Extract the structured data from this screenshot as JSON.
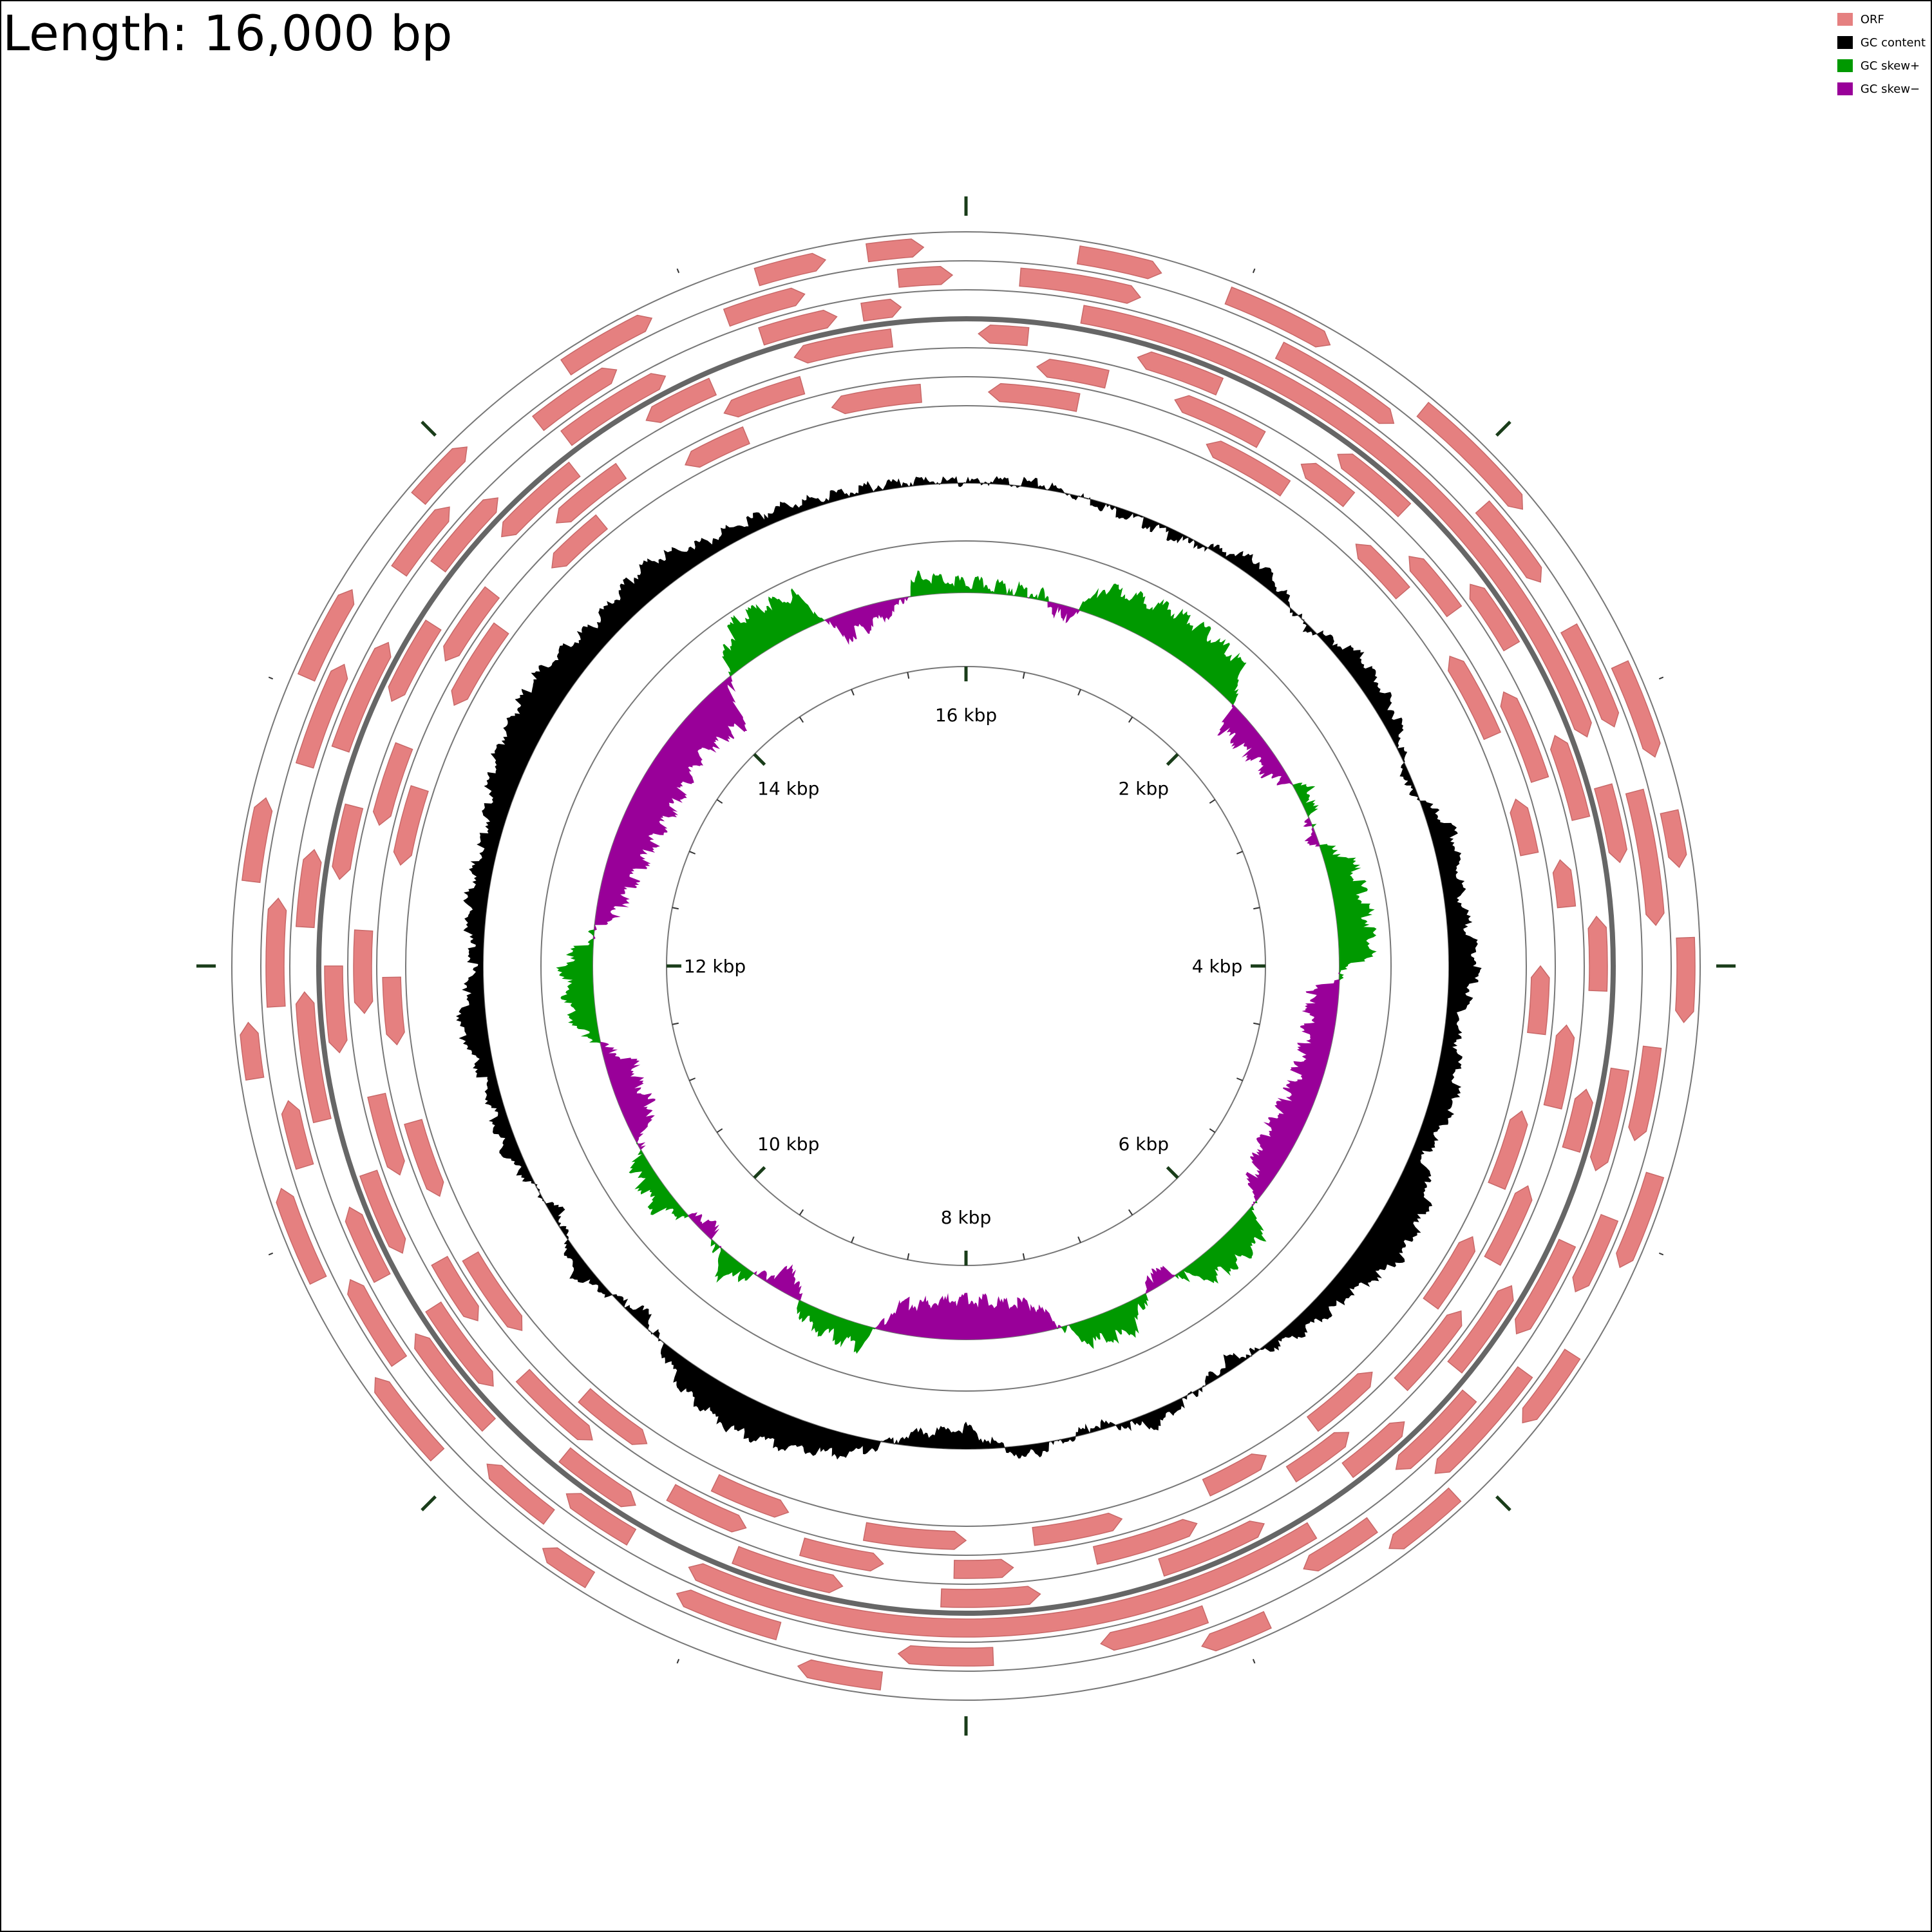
{
  "title": "Length: 16,000 bp",
  "legend": [
    {
      "label": "ORF",
      "color": "#e58080"
    },
    {
      "label": "GC content",
      "color": "#000000"
    },
    {
      "label": "GC skew+",
      "color": "#009900"
    },
    {
      "label": "GC skew−",
      "color": "#990099"
    }
  ],
  "map": {
    "sequence_length_bp": 16000,
    "scale_labels": [
      {
        "position_bp": 0,
        "text": "16 kbp"
      },
      {
        "position_bp": 2000,
        "text": "2 kbp"
      },
      {
        "position_bp": 4000,
        "text": "4 kbp"
      },
      {
        "position_bp": 6000,
        "text": "6 kbp"
      },
      {
        "position_bp": 8000,
        "text": "8 kbp"
      },
      {
        "position_bp": 10000,
        "text": "10 kbp"
      },
      {
        "position_bp": 12000,
        "text": "12 kbp"
      },
      {
        "position_bp": 14000,
        "text": "14 kbp"
      }
    ],
    "orf_tracks": [
      {
        "strand": "forward",
        "frame": 1,
        "orfs": [
          {
            "start": 400,
            "end": 700
          },
          {
            "start": 950,
            "end": 1350
          },
          {
            "start": 1750,
            "end": 2250
          },
          {
            "start": 2900,
            "end": 3250
          },
          {
            "start": 3450,
            "end": 3650
          },
          {
            "start": 3900,
            "end": 4200
          },
          {
            "start": 4750,
            "end": 5100
          },
          {
            "start": 5450,
            "end": 5750
          },
          {
            "start": 6100,
            "end": 6400
          },
          {
            "start": 6900,
            "end": 7150
          },
          {
            "start": 8300,
            "end": 8600
          },
          {
            "start": 9400,
            "end": 9600
          },
          {
            "start": 10100,
            "end": 10450
          },
          {
            "start": 10850,
            "end": 11200
          },
          {
            "start": 11600,
            "end": 11800
          },
          {
            "start": 12300,
            "end": 12600
          },
          {
            "start": 13050,
            "end": 13400
          },
          {
            "start": 13800,
            "end": 14050
          },
          {
            "start": 14500,
            "end": 14850
          },
          {
            "start": 15250,
            "end": 15500
          },
          {
            "start": 15650,
            "end": 15850
          }
        ]
      },
      {
        "strand": "forward",
        "frame": 2,
        "orfs": [
          {
            "start": 200,
            "end": 650
          },
          {
            "start": 1200,
            "end": 1700
          },
          {
            "start": 2150,
            "end": 2500
          },
          {
            "start": 2700,
            "end": 3100
          },
          {
            "start": 3350,
            "end": 3850
          },
          {
            "start": 4300,
            "end": 4650
          },
          {
            "start": 4950,
            "end": 5250
          },
          {
            "start": 5600,
            "end": 6100
          },
          {
            "start": 6400,
            "end": 6700
          },
          {
            "start": 7100,
            "end": 7500
          },
          {
            "start": 7900,
            "end": 8250
          },
          {
            "start": 8700,
            "end": 9100
          },
          {
            "start": 9650,
            "end": 9950
          },
          {
            "start": 10450,
            "end": 10800
          },
          {
            "start": 11250,
            "end": 11500
          },
          {
            "start": 11850,
            "end": 12250
          },
          {
            "start": 12750,
            "end": 13150
          },
          {
            "start": 13550,
            "end": 13850
          },
          {
            "start": 14300,
            "end": 14650
          },
          {
            "start": 15100,
            "end": 15400
          },
          {
            "start": 15750,
            "end": 15950
          }
        ]
      },
      {
        "strand": "forward",
        "frame": 3,
        "orfs": [
          {
            "start": 450,
            "end": 3100
          },
          {
            "start": 3300,
            "end": 3600
          },
          {
            "start": 4400,
            "end": 4800
          },
          {
            "start": 5100,
            "end": 5500
          },
          {
            "start": 5800,
            "end": 6200
          },
          {
            "start": 6600,
            "end": 9100
          },
          {
            "start": 9350,
            "end": 9650
          },
          {
            "start": 10050,
            "end": 10500
          },
          {
            "start": 10750,
            "end": 11050
          },
          {
            "start": 11400,
            "end": 11900
          },
          {
            "start": 12150,
            "end": 12450
          },
          {
            "start": 12850,
            "end": 13300
          },
          {
            "start": 13650,
            "end": 14000
          },
          {
            "start": 14350,
            "end": 14800
          },
          {
            "start": 15200,
            "end": 15500
          },
          {
            "start": 15600,
            "end": 15750
          }
        ]
      },
      {
        "strand": "reverse",
        "frame": 1,
        "orfs": [
          {
            "start": 50,
            "end": 250
          },
          {
            "start": 700,
            "end": 1050
          },
          {
            "start": 1600,
            "end": 1950
          },
          {
            "start": 2350,
            "end": 2650
          },
          {
            "start": 3050,
            "end": 3400
          },
          {
            "start": 3800,
            "end": 4100
          },
          {
            "start": 4500,
            "end": 4750
          },
          {
            "start": 5350,
            "end": 5750
          },
          {
            "start": 6050,
            "end": 6350
          },
          {
            "start": 6750,
            "end": 7200
          },
          {
            "start": 7700,
            "end": 8100
          },
          {
            "start": 8500,
            "end": 8950
          },
          {
            "start": 9400,
            "end": 9750
          },
          {
            "start": 10150,
            "end": 10550
          },
          {
            "start": 10800,
            "end": 11150
          },
          {
            "start": 11650,
            "end": 12000
          },
          {
            "start": 12350,
            "end": 12650
          },
          {
            "start": 13100,
            "end": 13450
          },
          {
            "start": 13900,
            "end": 14300
          },
          {
            "start": 14650,
            "end": 14950
          },
          {
            "start": 15300,
            "end": 15700
          }
        ]
      },
      {
        "strand": "reverse",
        "frame": 2,
        "orfs": [
          {
            "start": 300,
            "end": 600
          },
          {
            "start": 900,
            "end": 1300
          },
          {
            "start": 1500,
            "end": 1750
          },
          {
            "start": 2100,
            "end": 2400
          },
          {
            "start": 2800,
            "end": 3200
          },
          {
            "start": 3550,
            "end": 3750
          },
          {
            "start": 4250,
            "end": 4600
          },
          {
            "start": 4950,
            "end": 5300
          },
          {
            "start": 5550,
            "end": 5950
          },
          {
            "start": 6250,
            "end": 6550
          },
          {
            "start": 7000,
            "end": 7450
          },
          {
            "start": 7800,
            "end": 8050
          },
          {
            "start": 8350,
            "end": 8700
          },
          {
            "start": 8950,
            "end": 9300
          },
          {
            "start": 9700,
            "end": 10100
          },
          {
            "start": 10400,
            "end": 10700
          },
          {
            "start": 11100,
            "end": 11450
          },
          {
            "start": 11800,
            "end": 12150
          },
          {
            "start": 12600,
            "end": 12950
          },
          {
            "start": 13350,
            "end": 13700
          },
          {
            "start": 14100,
            "end": 14450
          },
          {
            "start": 14950,
            "end": 15300
          }
        ]
      },
      {
        "strand": "reverse",
        "frame": 3,
        "orfs": [
          {
            "start": 100,
            "end": 500
          },
          {
            "start": 1100,
            "end": 1500
          },
          {
            "start": 1900,
            "end": 2200
          },
          {
            "start": 2550,
            "end": 2950
          },
          {
            "start": 3250,
            "end": 3500
          },
          {
            "start": 4000,
            "end": 4300
          },
          {
            "start": 4650,
            "end": 5000
          },
          {
            "start": 5250,
            "end": 5600
          },
          {
            "start": 6000,
            "end": 6350
          },
          {
            "start": 6600,
            "end": 6900
          },
          {
            "start": 7300,
            "end": 7700
          },
          {
            "start": 8000,
            "end": 8450
          },
          {
            "start": 8800,
            "end": 9150
          },
          {
            "start": 9500,
            "end": 9850
          },
          {
            "start": 10250,
            "end": 10650
          },
          {
            "start": 10950,
            "end": 11300
          },
          {
            "start": 11650,
            "end": 11950
          },
          {
            "start": 12450,
            "end": 12800
          },
          {
            "start": 13200,
            "end": 13600
          },
          {
            "start": 13950,
            "end": 14250
          },
          {
            "start": 14700,
            "end": 15000
          },
          {
            "start": 15400,
            "end": 15800
          }
        ]
      }
    ],
    "gc_content_profile": [
      {
        "pos": 0,
        "dev": 0.02
      },
      {
        "pos": 400,
        "dev": 0.1
      },
      {
        "pos": 800,
        "dev": -0.1
      },
      {
        "pos": 1200,
        "dev": -0.15
      },
      {
        "pos": 1600,
        "dev": 0.35
      },
      {
        "pos": 2000,
        "dev": -0.1
      },
      {
        "pos": 2300,
        "dev": 0.4
      },
      {
        "pos": 2700,
        "dev": 0.3
      },
      {
        "pos": 3000,
        "dev": -0.2
      },
      {
        "pos": 3300,
        "dev": 0.45
      },
      {
        "pos": 3700,
        "dev": 0.35
      },
      {
        "pos": 4000,
        "dev": 0.6
      },
      {
        "pos": 4300,
        "dev": 0.25
      },
      {
        "pos": 4700,
        "dev": 0.5
      },
      {
        "pos": 5000,
        "dev": 0.25
      },
      {
        "pos": 5200,
        "dev": 0.75
      },
      {
        "pos": 5500,
        "dev": 0.85
      },
      {
        "pos": 5800,
        "dev": 0.45
      },
      {
        "pos": 6200,
        "dev": 0.25
      },
      {
        "pos": 6500,
        "dev": -0.25
      },
      {
        "pos": 7000,
        "dev": 0.3
      },
      {
        "pos": 7300,
        "dev": -0.15
      },
      {
        "pos": 7700,
        "dev": 0.25
      },
      {
        "pos": 8000,
        "dev": -0.45
      },
      {
        "pos": 8300,
        "dev": -0.25
      },
      {
        "pos": 8600,
        "dev": 0.4
      },
      {
        "pos": 8900,
        "dev": 0.65
      },
      {
        "pos": 9200,
        "dev": 0.75
      },
      {
        "pos": 9500,
        "dev": 0.55
      },
      {
        "pos": 9900,
        "dev": -0.25
      },
      {
        "pos": 10300,
        "dev": 0.35
      },
      {
        "pos": 10600,
        "dev": -0.2
      },
      {
        "pos": 11000,
        "dev": 0.3
      },
      {
        "pos": 11400,
        "dev": 0.25
      },
      {
        "pos": 11700,
        "dev": 0.55
      },
      {
        "pos": 12000,
        "dev": 0.2
      },
      {
        "pos": 12300,
        "dev": 0.4
      },
      {
        "pos": 12700,
        "dev": 0.35
      },
      {
        "pos": 13100,
        "dev": 0.7
      },
      {
        "pos": 13500,
        "dev": 0.75
      },
      {
        "pos": 13900,
        "dev": 0.45
      },
      {
        "pos": 14300,
        "dev": 0.65
      },
      {
        "pos": 14600,
        "dev": 0.3
      },
      {
        "pos": 15000,
        "dev": 0.25
      },
      {
        "pos": 15300,
        "dev": 0.15
      },
      {
        "pos": 15700,
        "dev": 0.1
      },
      {
        "pos": 16000,
        "dev": 0.02
      }
    ],
    "gc_skew_profile": [
      {
        "pos": 0,
        "skew": 0.15
      },
      {
        "pos": 500,
        "skew": 0.1
      },
      {
        "pos": 700,
        "skew": -0.25
      },
      {
        "pos": 900,
        "skew": 0.45
      },
      {
        "pos": 1400,
        "skew": 0.6
      },
      {
        "pos": 1900,
        "skew": 0.55
      },
      {
        "pos": 2100,
        "skew": -0.4
      },
      {
        "pos": 2600,
        "skew": -0.25
      },
      {
        "pos": 2800,
        "skew": 0.25
      },
      {
        "pos": 3100,
        "skew": -0.15
      },
      {
        "pos": 3300,
        "skew": 0.4
      },
      {
        "pos": 3900,
        "skew": 0.55
      },
      {
        "pos": 4200,
        "skew": -0.45
      },
      {
        "pos": 4800,
        "skew": -0.4
      },
      {
        "pos": 5400,
        "skew": -0.5
      },
      {
        "pos": 5700,
        "skew": -0.2
      },
      {
        "pos": 5900,
        "skew": 0.45
      },
      {
        "pos": 6300,
        "skew": 0.4
      },
      {
        "pos": 6600,
        "skew": -0.3
      },
      {
        "pos": 6900,
        "skew": 0.45
      },
      {
        "pos": 7200,
        "skew": 0.35
      },
      {
        "pos": 7500,
        "skew": -0.45
      },
      {
        "pos": 8000,
        "skew": -0.65
      },
      {
        "pos": 8500,
        "skew": -0.45
      },
      {
        "pos": 8700,
        "skew": 0.35
      },
      {
        "pos": 9100,
        "skew": 0.25
      },
      {
        "pos": 9300,
        "skew": -0.4
      },
      {
        "pos": 9700,
        "skew": 0.35
      },
      {
        "pos": 10000,
        "skew": -0.25
      },
      {
        "pos": 10300,
        "skew": 0.35
      },
      {
        "pos": 10600,
        "skew": 0.25
      },
      {
        "pos": 10900,
        "skew": -0.45
      },
      {
        "pos": 11300,
        "skew": -0.4
      },
      {
        "pos": 11600,
        "skew": 0.35
      },
      {
        "pos": 12000,
        "skew": 0.45
      },
      {
        "pos": 12400,
        "skew": -0.35
      },
      {
        "pos": 12800,
        "skew": -0.55
      },
      {
        "pos": 13300,
        "skew": -0.65
      },
      {
        "pos": 13700,
        "skew": -0.55
      },
      {
        "pos": 14100,
        "skew": -0.7
      },
      {
        "pos": 14300,
        "skew": 0.25
      },
      {
        "pos": 14500,
        "skew": 0.65
      },
      {
        "pos": 14900,
        "skew": 0.55
      },
      {
        "pos": 15100,
        "skew": -0.4
      },
      {
        "pos": 15500,
        "skew": -0.2
      },
      {
        "pos": 15700,
        "skew": 0.3
      },
      {
        "pos": 16000,
        "skew": 0.15
      }
    ]
  }
}
